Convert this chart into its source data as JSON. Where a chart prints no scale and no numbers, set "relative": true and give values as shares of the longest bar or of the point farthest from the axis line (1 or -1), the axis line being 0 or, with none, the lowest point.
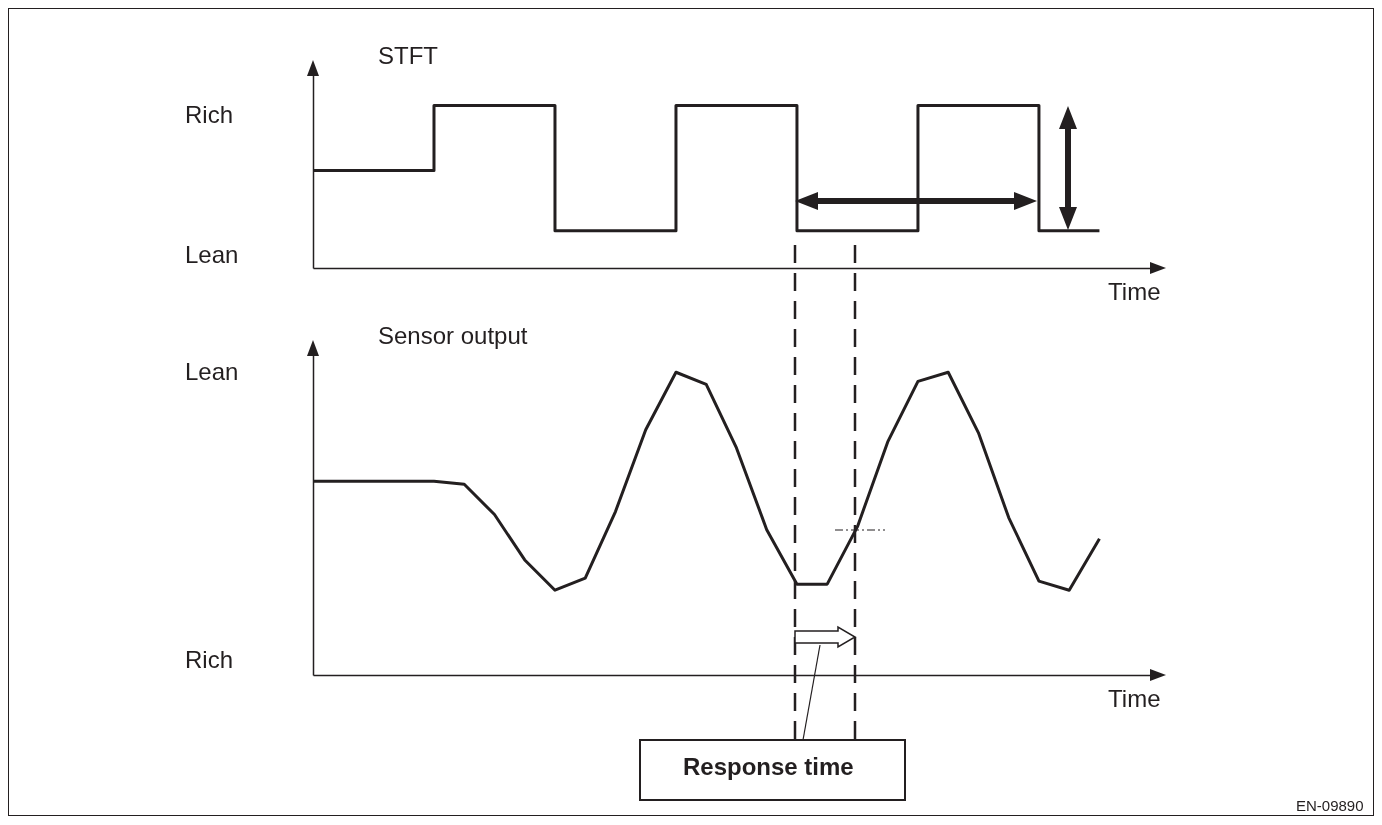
{
  "chart_data": [
    {
      "type": "step",
      "title": "STFT",
      "xlabel": "Time",
      "relative": true,
      "tick_labels": false,
      "line_style": "solid",
      "categories": [
        null,
        null,
        null,
        null,
        null,
        null,
        null,
        null,
        null,
        null,
        null,
        null,
        null,
        null
      ],
      "series": [
        {
          "color": "#231f20",
          "values": [
            0.6,
            0.6,
            1,
            1,
            0.23,
            0.23,
            1,
            1,
            0.23,
            0.23,
            1,
            1,
            0.23,
            0.23
          ]
        }
      ],
      "annotations": [
        "Rich",
        "Lean"
      ]
    },
    {
      "type": "line",
      "title": "Sensor output",
      "xlabel": "Time",
      "relative": true,
      "tick_labels": false,
      "line_style": "solid",
      "categories": [
        null,
        null,
        null,
        null,
        null,
        null,
        null,
        null,
        null,
        null,
        null,
        null,
        null,
        null,
        null,
        null,
        null,
        null,
        null,
        null,
        null,
        null,
        null,
        null,
        null,
        null,
        null
      ],
      "series": [
        {
          "color": "#231f20",
          "values": [
            0.64,
            0.64,
            0.64,
            0.64,
            0.64,
            0.63,
            0.53,
            0.38,
            0.28,
            0.32,
            0.54,
            0.81,
            1.0,
            0.96,
            0.75,
            0.48,
            0.3,
            0.3,
            0.49,
            0.77,
            0.97,
            1.0,
            0.8,
            0.52,
            0.31,
            0.28,
            0.45
          ]
        }
      ],
      "annotations": [
        "Lean",
        "Rich",
        "Response time",
        "EN-09890"
      ]
    }
  ]
}
